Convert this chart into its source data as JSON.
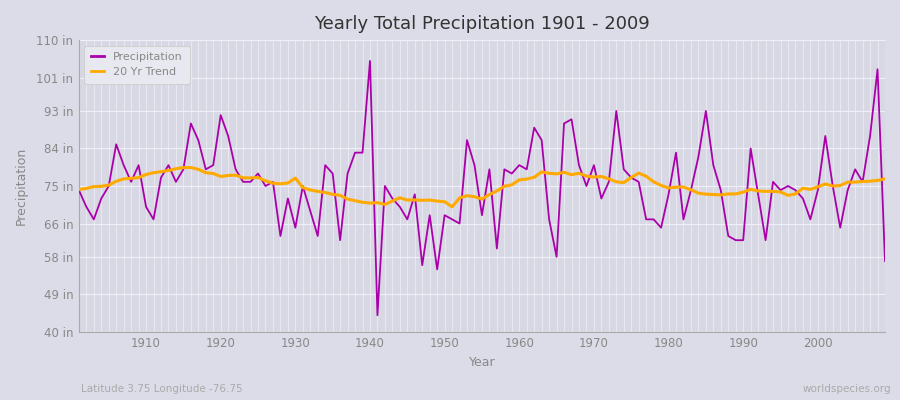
{
  "title": "Yearly Total Precipitation 1901 - 2009",
  "xlabel": "Year",
  "ylabel": "Precipitation",
  "subtitle_left": "Latitude 3.75 Longitude -76.75",
  "subtitle_right": "worldspecies.org",
  "ylim": [
    40,
    110
  ],
  "yticks": [
    40,
    49,
    58,
    66,
    75,
    84,
    93,
    101,
    110
  ],
  "ytick_labels": [
    "40 in",
    "49 in",
    "58 in",
    "66 in",
    "75 in",
    "84 in",
    "93 in",
    "101 in",
    "110 in"
  ],
  "xticks": [
    1910,
    1920,
    1930,
    1940,
    1950,
    1960,
    1970,
    1980,
    1990,
    2000
  ],
  "xlim": [
    1901,
    2009
  ],
  "years": [
    1901,
    1902,
    1903,
    1904,
    1905,
    1906,
    1907,
    1908,
    1909,
    1910,
    1911,
    1912,
    1913,
    1914,
    1915,
    1916,
    1917,
    1918,
    1919,
    1920,
    1921,
    1922,
    1923,
    1924,
    1925,
    1926,
    1927,
    1928,
    1929,
    1930,
    1931,
    1932,
    1933,
    1934,
    1935,
    1936,
    1937,
    1938,
    1939,
    1940,
    1941,
    1942,
    1943,
    1944,
    1945,
    1946,
    1947,
    1948,
    1949,
    1950,
    1951,
    1952,
    1953,
    1954,
    1955,
    1956,
    1957,
    1958,
    1959,
    1960,
    1961,
    1962,
    1963,
    1964,
    1965,
    1966,
    1967,
    1968,
    1969,
    1970,
    1971,
    1972,
    1973,
    1974,
    1975,
    1976,
    1977,
    1978,
    1979,
    1980,
    1981,
    1982,
    1983,
    1984,
    1985,
    1986,
    1987,
    1988,
    1989,
    1990,
    1991,
    1992,
    1993,
    1994,
    1995,
    1996,
    1997,
    1998,
    1999,
    2000,
    2001,
    2002,
    2003,
    2004,
    2005,
    2006,
    2007,
    2008,
    2009
  ],
  "precip": [
    74,
    70,
    67,
    72,
    75,
    85,
    80,
    76,
    80,
    70,
    67,
    77,
    80,
    76,
    79,
    90,
    86,
    79,
    80,
    92,
    87,
    79,
    76,
    76,
    78,
    75,
    76,
    63,
    72,
    65,
    75,
    69,
    63,
    80,
    78,
    62,
    78,
    83,
    83,
    105,
    44,
    75,
    72,
    70,
    67,
    73,
    56,
    68,
    55,
    68,
    67,
    66,
    86,
    80,
    68,
    79,
    60,
    79,
    78,
    80,
    79,
    89,
    86,
    67,
    58,
    90,
    91,
    80,
    75,
    80,
    72,
    76,
    93,
    79,
    77,
    76,
    67,
    67,
    65,
    73,
    83,
    67,
    74,
    82,
    93,
    80,
    74,
    63,
    62,
    62,
    84,
    73,
    62,
    76,
    74,
    75,
    74,
    72,
    67,
    74,
    87,
    75,
    65,
    74,
    79,
    76,
    87,
    103,
    57
  ],
  "precip_color": "#aa00aa",
  "trend_color": "#ffaa00",
  "fig_bg_color": "#dcdce8",
  "plot_bg_color": "#d8d8e4",
  "grid_color": "#f0f0f8",
  "tick_color": "#888888",
  "title_color": "#333333",
  "label_color": "#888888",
  "annotation_color": "#aaaaaa",
  "legend_bg": "#e8e8f0",
  "legend_edge": "#cccccc",
  "trend_window": 20
}
